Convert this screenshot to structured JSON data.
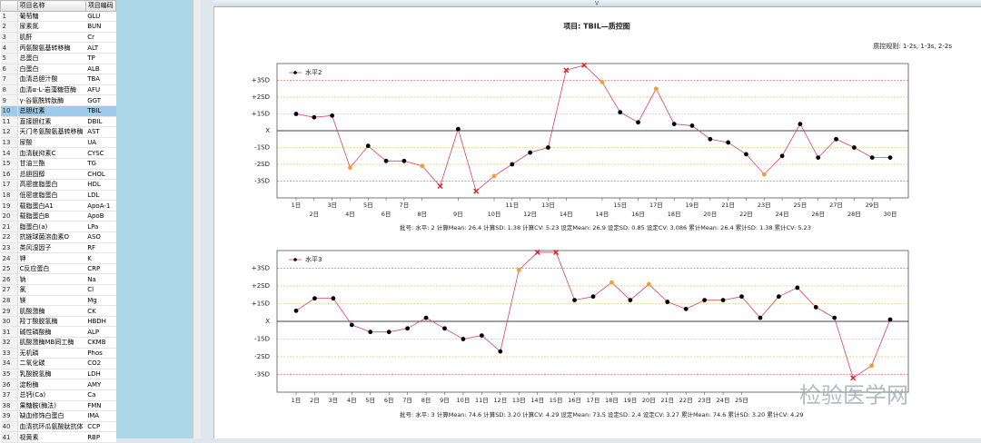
{
  "table": {
    "header": [
      "项目名称",
      "项目编码"
    ],
    "selected": 10,
    "rows": [
      [
        1,
        "葡萄糖",
        "GLU"
      ],
      [
        2,
        "尿素氮",
        "BUN"
      ],
      [
        3,
        "肌酐",
        "Cr"
      ],
      [
        4,
        "丙氨酸氨基转移酶",
        "ALT"
      ],
      [
        5,
        "总蛋白",
        "TP"
      ],
      [
        6,
        "白蛋白",
        "ALB"
      ],
      [
        7,
        "血清总胆汁酸",
        "TBA"
      ],
      [
        8,
        "血清α-L-岩藻糖苷酶",
        "AFU"
      ],
      [
        9,
        "γ-谷氨酰转肽酶",
        "GGT"
      ],
      [
        10,
        "总胆红素",
        "TBIL"
      ],
      [
        11,
        "直接胆红素",
        "DBIL"
      ],
      [
        12,
        "天门冬氨酸氨基转移酶",
        "AST"
      ],
      [
        13,
        "尿酸",
        "UA"
      ],
      [
        14,
        "血清胱抑素C",
        "CYSC"
      ],
      [
        15,
        "甘油三酯",
        "TG"
      ],
      [
        16,
        "总胆固醇",
        "CHOL"
      ],
      [
        17,
        "高密度脂蛋白",
        "HDL"
      ],
      [
        18,
        "低密度脂蛋白",
        "LDL"
      ],
      [
        19,
        "载脂蛋白A1",
        "ApoA-1"
      ],
      [
        20,
        "载脂蛋白B",
        "ApoB"
      ],
      [
        21,
        "脂蛋白(a)",
        "LPa"
      ],
      [
        22,
        "抗链球菌溶血素O",
        "ASO"
      ],
      [
        23,
        "类风湿因子",
        "RF"
      ],
      [
        24,
        "钾",
        "K"
      ],
      [
        25,
        "C反应蛋白",
        "CRP"
      ],
      [
        26,
        "钠",
        "Na"
      ],
      [
        27,
        "氯",
        "Cl"
      ],
      [
        28,
        "镁",
        "Mg"
      ],
      [
        29,
        "肌酸激酶",
        "CK"
      ],
      [
        30,
        "羟丁酸脱氢酶",
        "HBDH"
      ],
      [
        31,
        "碱性磷酸酶",
        "ALP"
      ],
      [
        32,
        "肌酸激酶MB同工酶",
        "CKMB"
      ],
      [
        33,
        "无机磷",
        "Phos"
      ],
      [
        34,
        "二氧化碳",
        "CO2"
      ],
      [
        35,
        "乳酸脱氢酶",
        "LDH"
      ],
      [
        36,
        "淀粉酶",
        "AMY"
      ],
      [
        37,
        "总钙(Ca)",
        "Ca"
      ],
      [
        38,
        "果糖胺(酶法)",
        "FMN"
      ],
      [
        39,
        "缺血修饰白蛋白",
        "IMA"
      ],
      [
        40,
        "血清抗环瓜氨酸肽抗体",
        "CCP"
      ],
      [
        41,
        "视黄素",
        "RBP"
      ]
    ]
  },
  "header": {
    "title": "项目:  TBIL—质控图",
    "rule": "质控规则: 1-2s, 1-3s, 2-2s",
    "toggle": "V"
  },
  "watermark": "检验医学网",
  "chart_data": [
    {
      "type": "line",
      "ylim": [
        -4,
        4
      ],
      "yticks": [
        {
          "value": 3,
          "label": "+3SD"
        },
        {
          "value": 2,
          "label": "+2SD"
        },
        {
          "value": 1,
          "label": "+1SD"
        },
        {
          "value": 0,
          "label": "X"
        },
        {
          "value": -1,
          "label": "-1SD"
        },
        {
          "value": -2,
          "label": "-2SD"
        },
        {
          "value": -3,
          "label": "-3SD"
        }
      ],
      "ytick_colors": [
        "#d03030",
        "#e0a020",
        "#c8c040",
        "#000000",
        "#c8c040",
        "#e0a020",
        "#d03030"
      ],
      "categories": [
        "1日",
        "2日",
        "3日",
        "4日",
        "5日",
        "6日",
        "7日",
        "8日",
        null,
        "9日",
        null,
        "10日",
        "11日",
        "12日",
        "13日",
        "14日",
        null,
        "14日",
        "15日",
        "16日",
        "17日",
        "18日",
        "19日",
        "20日",
        "21日",
        "22日",
        "23日",
        "24日",
        "25日",
        "26日",
        "27日",
        "28日",
        "29日",
        "30日"
      ],
      "series": [
        {
          "name": "水平2",
          "color": "#d8406a",
          "values": [
            1.0,
            0.8,
            0.9,
            -2.2,
            -0.9,
            -1.8,
            -1.8,
            -2.1,
            -3.3,
            0.1,
            -3.6,
            -2.7,
            -2.0,
            -1.3,
            -1.0,
            3.6,
            3.9,
            2.9,
            1.1,
            0.5,
            2.5,
            0.4,
            0.3,
            -0.5,
            -0.7,
            -1.4,
            -2.6,
            -1.5,
            0.4,
            -1.6,
            -0.5,
            -1.0,
            -1.6,
            -1.6
          ],
          "point_colors": [
            "#000",
            "#000",
            "#000",
            "#f0a030",
            "#000",
            "#000",
            "#000",
            "#f0a030",
            "#e02020",
            "#000",
            "#e02020",
            "#f0a030",
            "#000",
            "#000",
            "#000",
            "#e02020",
            "#e02020",
            "#f0a030",
            "#000",
            "#000",
            "#f0a030",
            "#000",
            "#000",
            "#000",
            "#000",
            "#000",
            "#f0a030",
            "#000",
            "#000",
            "#000",
            "#000",
            "#000",
            "#000",
            "#000"
          ]
        }
      ],
      "note": "批号:   水平: 2  计算Mean: 26.4  计算SD: 1.38  计算CV: 5.23   设定Mean: 26.9  设定SD: 0.85  设定CV: 3.086  累计Mean: 26.4  累计SD: 1.38  累计CV: 5.23"
    },
    {
      "type": "line",
      "ylim": [
        -4,
        4
      ],
      "yticks": [
        {
          "value": 3,
          "label": "+3SD"
        },
        {
          "value": 2,
          "label": "+2SD"
        },
        {
          "value": 1,
          "label": "+1SD"
        },
        {
          "value": 0,
          "label": "X"
        },
        {
          "value": -1,
          "label": "-1SD"
        },
        {
          "value": -2,
          "label": "-2SD"
        },
        {
          "value": -3,
          "label": "-3SD"
        }
      ],
      "ytick_colors": [
        "#d03030",
        "#e0a020",
        "#c8c040",
        "#000000",
        "#c8c040",
        "#e0a020",
        "#d03030"
      ],
      "categories": [
        "1日",
        "2日",
        "3日",
        "4日",
        "5日",
        "6日",
        "7日",
        "8日",
        "9日",
        "10日",
        "11日",
        "12日",
        "13日",
        "14日",
        "15日",
        "16日",
        "17日",
        "18日",
        "19日",
        "20日",
        "21日",
        "22日",
        "23日",
        "24日",
        "25日",
        null,
        null,
        null,
        null,
        null,
        null,
        null,
        null
      ],
      "series": [
        {
          "name": "水平3",
          "color": "#d8406a",
          "values": [
            0.6,
            1.3,
            1.3,
            -0.2,
            -0.6,
            -0.6,
            -0.4,
            0.2,
            -0.4,
            -1.0,
            -0.8,
            -1.7,
            2.9,
            3.9,
            3.9,
            1.2,
            1.4,
            2.2,
            1.2,
            2.1,
            1.1,
            0.7,
            1.2,
            1.2,
            1.4,
            0.2,
            1.4,
            1.9,
            0.8,
            0.2,
            -3.2,
            -2.5,
            0.1
          ],
          "point_colors": [
            "#000",
            "#000",
            "#000",
            "#000",
            "#000",
            "#000",
            "#000",
            "#000",
            "#000",
            "#000",
            "#000",
            "#000",
            "#f0a030",
            "#e02020",
            "#e02020",
            "#000",
            "#000",
            "#f0a030",
            "#000",
            "#f0a030",
            "#000",
            "#000",
            "#000",
            "#000",
            "#000",
            "#000",
            "#000",
            "#000",
            "#000",
            "#000",
            "#e02020",
            "#f0a030",
            "#000"
          ]
        }
      ],
      "note": "批号:   水平: 3  计算Mean: 74.6  计算SD: 3.20  计算CV: 4.29   设定Mean: 73.5  设定SD: 2.4  设定CV: 3.27  累计Mean: 74.6  累计SD: 3.20  累计CV: 4.29"
    }
  ]
}
